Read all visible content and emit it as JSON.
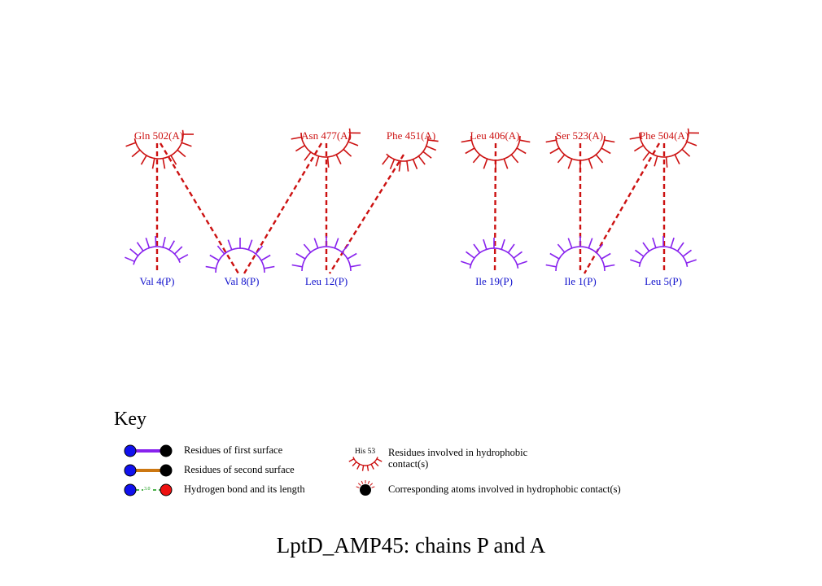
{
  "colors": {
    "chain_a": "#cc1111",
    "chain_p": "#8822ee",
    "chain_p_label": "#1111cc",
    "contact": "#cc1111",
    "second_surface": "#cc7711",
    "hbond": "#119911",
    "atom_blue": "#1111ee",
    "atom_black": "#000000",
    "atom_red": "#ee1111"
  },
  "diagram": {
    "chain_a_residues": [
      {
        "label": "Gln 502(A)",
        "contacts_to": [
          "Val 4(P)",
          "Val 8(P)"
        ]
      },
      {
        "label": "Asn 477(A)",
        "contacts_to": [
          "Val 8(P)",
          "Leu 12(P)"
        ]
      },
      {
        "label": "Phe 451(A)",
        "contacts_to": [
          "Leu 12(P)"
        ]
      },
      {
        "label": "Leu 406(A)",
        "contacts_to": [
          "Ile 19(P)"
        ]
      },
      {
        "label": "Ser 523(A)",
        "contacts_to": [
          "Ile 1(P)"
        ]
      },
      {
        "label": "Phe 504(A)",
        "contacts_to": [
          "Ile 1(P)",
          "Leu 5(P)"
        ]
      }
    ],
    "chain_p_residues": [
      {
        "label": "Val 4(P)"
      },
      {
        "label": "Val 8(P)"
      },
      {
        "label": "Leu 12(P)"
      },
      {
        "label": "Ile 19(P)"
      },
      {
        "label": "Ile 1(P)"
      },
      {
        "label": "Leu 5(P)"
      }
    ]
  },
  "key": {
    "title": "Key",
    "items": [
      {
        "icon": "first-surface-bond-icon",
        "label": "Residues of first surface"
      },
      {
        "icon": "second-surface-bond-icon",
        "label": "Residues of second surface"
      },
      {
        "icon": "hydrogen-bond-icon",
        "label": "Hydrogen bond and its length",
        "bond_length": "3.0"
      },
      {
        "icon": "hydrophobic-residue-icon",
        "label": "Residues involved in hydrophobic contact(s)",
        "example_residue": "His 53"
      },
      {
        "icon": "hydrophobic-atom-icon",
        "label": "Corresponding atoms involved in hydrophobic contact(s)"
      }
    ]
  },
  "title": "LptD_AMP45: chains P and A"
}
